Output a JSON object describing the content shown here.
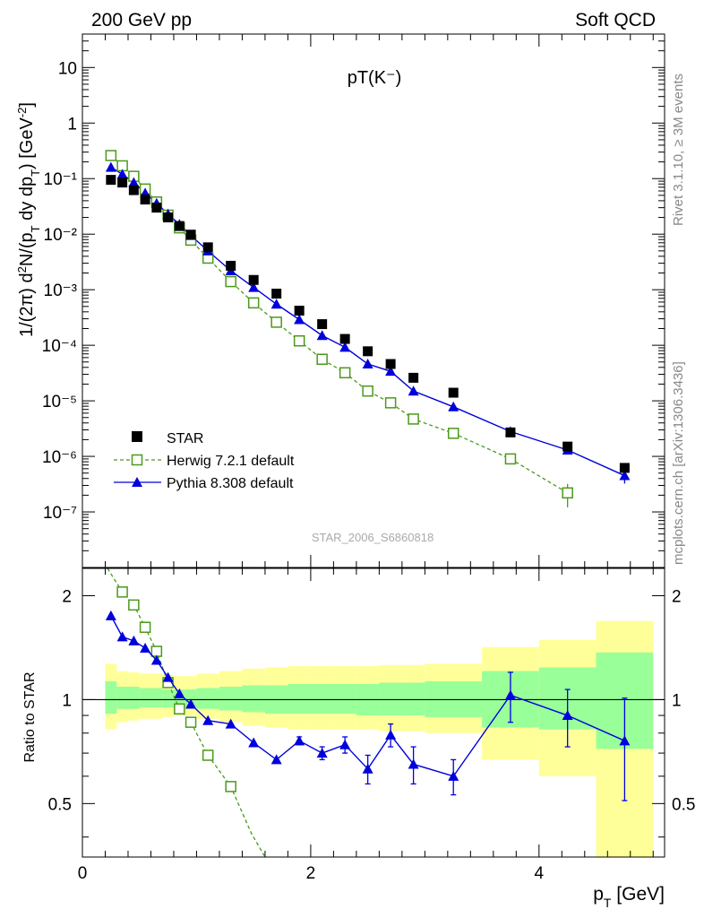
{
  "header": {
    "left": "200 GeV pp",
    "right": "Soft QCD"
  },
  "side": {
    "top": "Rivet 3.1.10, ≥ 3M events",
    "bottom": "mcplots.cern.ch [arXiv:1306.3436]"
  },
  "colors": {
    "star": "#000000",
    "herwig": "#4a9a1a",
    "pythia": "#0000dd",
    "band_outer": "#ffff99",
    "band_inner": "#99ff99"
  },
  "chart_data": [
    {
      "type": "scatter",
      "title": "pT(K⁻)",
      "watermark": "STAR_2006_S6860818",
      "ylabel": "1/(2π) d²N/(p_T dy dp_T) [GeV²]",
      "yscale": "log",
      "xlim": [
        0,
        5.1
      ],
      "ylim": [
        1e-08,
        40
      ],
      "ytick_labels": [
        "10",
        "1",
        "10⁻¹",
        "10⁻²",
        "10⁻³",
        "10⁻⁴",
        "10⁻⁵",
        "10⁻⁶",
        "10⁻⁷"
      ],
      "legend_position": "bottom-left",
      "series": [
        {
          "name": "STAR",
          "marker": "filled-square",
          "x": [
            0.25,
            0.35,
            0.45,
            0.55,
            0.65,
            0.75,
            0.85,
            0.95,
            1.1,
            1.3,
            1.5,
            1.7,
            1.9,
            2.1,
            2.3,
            2.5,
            2.7,
            2.9,
            3.25,
            3.75,
            4.25,
            4.75
          ],
          "y": [
            0.095,
            0.085,
            0.062,
            0.042,
            0.03,
            0.02,
            0.014,
            0.0098,
            0.0058,
            0.0027,
            0.0015,
            0.00085,
            0.00042,
            0.00024,
            0.00013,
            7.8e-05,
            4.6e-05,
            2.6e-05,
            1.4e-05,
            2.7e-06,
            1.5e-06,
            6.2e-07
          ]
        },
        {
          "name": "Herwig 7.2.1 default",
          "marker": "open-square",
          "x": [
            0.25,
            0.35,
            0.45,
            0.55,
            0.65,
            0.75,
            0.85,
            0.95,
            1.1,
            1.3,
            1.5,
            1.7,
            1.9,
            2.1,
            2.3,
            2.5,
            2.7,
            2.9,
            3.25,
            3.75,
            4.25
          ],
          "y": [
            0.26,
            0.17,
            0.11,
            0.065,
            0.038,
            0.022,
            0.013,
            0.0078,
            0.0037,
            0.0014,
            0.00058,
            0.00026,
            0.00012,
            5.6e-05,
            3.2e-05,
            1.5e-05,
            9.2e-06,
            4.7e-06,
            2.6e-06,
            9e-07,
            2.2e-07
          ]
        },
        {
          "name": "Pythia 8.308 default",
          "marker": "filled-triangle",
          "x": [
            0.25,
            0.35,
            0.45,
            0.55,
            0.65,
            0.75,
            0.85,
            0.95,
            1.1,
            1.3,
            1.5,
            1.7,
            1.9,
            2.1,
            2.3,
            2.5,
            2.7,
            2.9,
            3.25,
            3.75,
            4.25,
            4.75
          ],
          "y": [
            0.16,
            0.12,
            0.085,
            0.055,
            0.036,
            0.023,
            0.015,
            0.0095,
            0.005,
            0.0022,
            0.0011,
            0.00055,
            0.00029,
            0.00015,
            9.2e-05,
            4.6e-05,
            3.4e-05,
            1.5e-05,
            7.8e-06,
            2.8e-06,
            1.3e-06,
            4.5e-07
          ]
        }
      ]
    },
    {
      "type": "scatter",
      "ylabel": "Ratio to STAR",
      "xlabel": "p_T [GeV]",
      "yscale": "log",
      "xlim": [
        0,
        5.1
      ],
      "ylim": [
        0.35,
        2.4
      ],
      "xtick_labels": [
        "0",
        "2",
        "4"
      ],
      "ytick_labels": [
        "0.5",
        "1",
        "2"
      ],
      "reference_line": 1,
      "bands": {
        "edges": [
          0.2,
          0.3,
          0.4,
          0.5,
          0.6,
          0.7,
          0.8,
          0.9,
          1.0,
          1.2,
          1.4,
          1.6,
          1.8,
          2.0,
          2.2,
          2.4,
          2.6,
          2.8,
          3.0,
          3.5,
          4.0,
          4.5,
          5.0
        ],
        "outer_lo": [
          0.82,
          0.86,
          0.87,
          0.88,
          0.88,
          0.89,
          0.9,
          0.9,
          0.88,
          0.86,
          0.84,
          0.83,
          0.82,
          0.82,
          0.82,
          0.82,
          0.81,
          0.81,
          0.8,
          0.67,
          0.6,
          0.35
        ],
        "outer_hi": [
          1.27,
          1.21,
          1.2,
          1.19,
          1.19,
          1.18,
          1.17,
          1.17,
          1.19,
          1.21,
          1.23,
          1.24,
          1.25,
          1.25,
          1.25,
          1.25,
          1.26,
          1.26,
          1.27,
          1.42,
          1.49,
          1.69
        ],
        "inner_lo": [
          0.91,
          0.94,
          0.94,
          0.95,
          0.95,
          0.95,
          0.95,
          0.95,
          0.94,
          0.93,
          0.92,
          0.91,
          0.91,
          0.91,
          0.91,
          0.9,
          0.9,
          0.9,
          0.89,
          0.83,
          0.82,
          0.72
        ],
        "inner_hi": [
          1.13,
          1.09,
          1.09,
          1.08,
          1.08,
          1.07,
          1.07,
          1.07,
          1.08,
          1.09,
          1.1,
          1.1,
          1.11,
          1.11,
          1.11,
          1.11,
          1.12,
          1.12,
          1.13,
          1.21,
          1.24,
          1.37
        ]
      },
      "series": [
        {
          "name": "Herwig 7.2.1 default",
          "marker": "open-square",
          "x": [
            0.35,
            0.45,
            0.55,
            0.65,
            0.75,
            0.85,
            0.95,
            1.1,
            1.3
          ],
          "y": [
            2.05,
            1.88,
            1.62,
            1.38,
            1.12,
            0.94,
            0.86,
            0.69,
            0.56
          ]
        },
        {
          "name": "Pythia 8.308 default",
          "marker": "filled-triangle",
          "x": [
            0.25,
            0.35,
            0.45,
            0.55,
            0.65,
            0.75,
            0.85,
            0.95,
            1.1,
            1.3,
            1.5,
            1.7,
            1.9,
            2.1,
            2.3,
            2.5,
            2.7,
            2.9,
            3.25,
            3.75,
            4.25,
            4.75
          ],
          "y": [
            1.75,
            1.52,
            1.48,
            1.41,
            1.3,
            1.16,
            1.04,
            0.97,
            0.87,
            0.85,
            0.75,
            0.67,
            0.76,
            0.7,
            0.74,
            0.63,
            0.79,
            0.65,
            0.6,
            1.03,
            0.9,
            0.76
          ],
          "err": [
            0,
            0,
            0,
            0,
            0,
            0,
            0,
            0,
            0,
            0,
            0,
            0,
            0.02,
            0.03,
            0.04,
            0.06,
            0.06,
            0.08,
            0.07,
            0.17,
            0.17,
            0.25
          ]
        }
      ]
    }
  ]
}
